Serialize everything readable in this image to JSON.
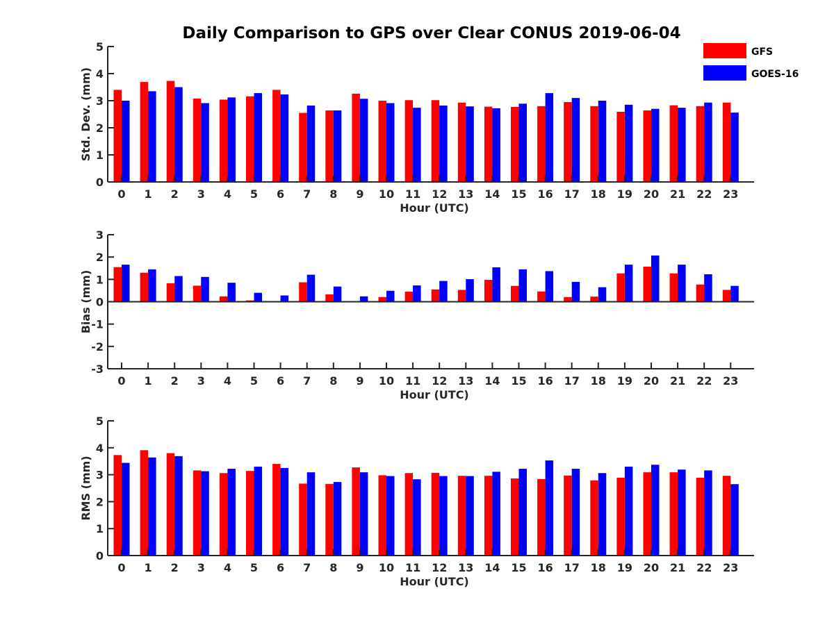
{
  "chart_data": [
    {
      "type": "bar",
      "title": "Daily Comparison to GPS over Clear CONUS 2019-06-04",
      "xlabel": "Hour (UTC)",
      "ylabel": "Std. Dev. (mm)",
      "ylim": [
        0,
        5
      ],
      "yticks": [
        "0",
        "1",
        "2",
        "3",
        "4",
        "5"
      ],
      "categories": [
        "0",
        "1",
        "2",
        "3",
        "4",
        "5",
        "6",
        "7",
        "8",
        "9",
        "10",
        "11",
        "12",
        "13",
        "14",
        "15",
        "16",
        "17",
        "18",
        "19",
        "20",
        "21",
        "22",
        "23"
      ],
      "series": [
        {
          "name": "GFS",
          "color": "#ff0000",
          "values": [
            3.4,
            3.69,
            3.73,
            3.08,
            3.04,
            3.16,
            3.4,
            2.55,
            2.64,
            3.26,
            3.0,
            3.02,
            3.02,
            2.93,
            2.78,
            2.77,
            2.8,
            2.95,
            2.8,
            2.59,
            2.64,
            2.83,
            2.8,
            2.93
          ]
        },
        {
          "name": "GOES-16",
          "color": "#0000ff",
          "values": [
            3.0,
            3.35,
            3.5,
            2.91,
            3.12,
            3.28,
            3.23,
            2.82,
            2.64,
            3.07,
            2.91,
            2.74,
            2.82,
            2.79,
            2.72,
            2.89,
            3.28,
            3.1,
            3.0,
            2.85,
            2.7,
            2.74,
            2.93,
            2.56
          ]
        }
      ]
    },
    {
      "type": "bar",
      "xlabel": "Hour (UTC)",
      "ylabel": "Bias (mm)",
      "ylim": [
        -3,
        3
      ],
      "yticks": [
        "-3",
        "-2",
        "-1",
        "0",
        "1",
        "2",
        "3"
      ],
      "categories": [
        "0",
        "1",
        "2",
        "3",
        "4",
        "5",
        "6",
        "7",
        "8",
        "9",
        "10",
        "11",
        "12",
        "13",
        "14",
        "15",
        "16",
        "17",
        "18",
        "19",
        "20",
        "21",
        "22",
        "23"
      ],
      "series": [
        {
          "name": "GFS",
          "color": "#ff0000",
          "values": [
            1.55,
            1.3,
            0.83,
            0.72,
            0.24,
            0.06,
            0.0,
            0.87,
            0.33,
            -0.03,
            0.21,
            0.45,
            0.55,
            0.53,
            0.98,
            0.71,
            0.46,
            0.21,
            0.23,
            1.27,
            1.57,
            1.27,
            0.77,
            0.53
          ]
        },
        {
          "name": "GOES-16",
          "color": "#0000ff",
          "values": [
            1.66,
            1.45,
            1.15,
            1.11,
            0.85,
            0.4,
            0.28,
            1.21,
            0.68,
            0.24,
            0.49,
            0.73,
            0.93,
            1.01,
            1.54,
            1.45,
            1.37,
            0.89,
            0.65,
            1.66,
            2.07,
            1.66,
            1.23,
            0.71
          ]
        }
      ]
    },
    {
      "type": "bar",
      "xlabel": "Hour (UTC)",
      "ylabel": "RMS (mm)",
      "ylim": [
        0,
        5
      ],
      "yticks": [
        "0",
        "1",
        "2",
        "3",
        "4",
        "5"
      ],
      "categories": [
        "0",
        "1",
        "2",
        "3",
        "4",
        "5",
        "6",
        "7",
        "8",
        "9",
        "10",
        "11",
        "12",
        "13",
        "14",
        "15",
        "16",
        "17",
        "18",
        "19",
        "20",
        "21",
        "22",
        "23"
      ],
      "series": [
        {
          "name": "GFS",
          "color": "#ff0000",
          "values": [
            3.73,
            3.91,
            3.8,
            3.16,
            3.06,
            3.14,
            3.4,
            2.67,
            2.66,
            3.27,
            2.98,
            3.06,
            3.07,
            2.96,
            2.96,
            2.86,
            2.84,
            2.97,
            2.79,
            2.89,
            3.09,
            3.09,
            2.89,
            2.96
          ]
        },
        {
          "name": "GOES-16",
          "color": "#0000ff",
          "values": [
            3.44,
            3.64,
            3.69,
            3.13,
            3.22,
            3.3,
            3.25,
            3.09,
            2.73,
            3.09,
            2.95,
            2.83,
            2.95,
            2.95,
            3.11,
            3.22,
            3.53,
            3.22,
            3.06,
            3.3,
            3.37,
            3.19,
            3.16,
            2.65
          ]
        }
      ]
    }
  ],
  "legend": [
    {
      "label": "GFS",
      "color": "#ff0000"
    },
    {
      "label": "GOES-16",
      "color": "#0000ff"
    }
  ]
}
